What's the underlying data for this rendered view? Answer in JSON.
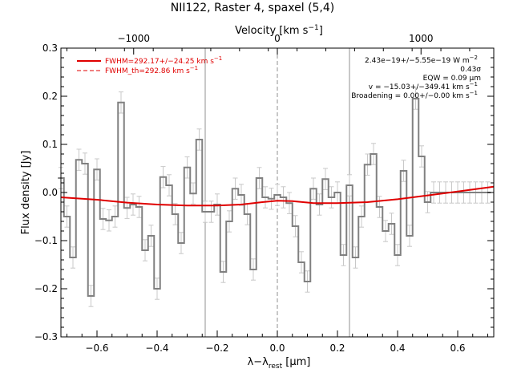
{
  "chart_data": {
    "type": "line",
    "title": "NII122, Raster 4, spaxel (5,4)",
    "xlabel": "λ−λ",
    "xlabel_sub": "rest",
    "xlabel_unit_open": " [",
    "xlabel_unit_mu": "μ",
    "xlabel_unit_close": "m]",
    "ylabel": "Flux density [Jy]",
    "top_axis_label": "Velocity [km s",
    "top_axis_label_sup": "−1",
    "top_axis_label_close": "]",
    "xlim": [
      -0.72,
      0.72
    ],
    "ylim": [
      -0.3,
      0.3
    ],
    "x_ticks": [
      -0.6,
      -0.4,
      -0.2,
      0.0,
      0.2,
      0.4,
      0.6
    ],
    "x_tick_labels": [
      "−0.6",
      "−0.4",
      "−0.2",
      "0.0",
      "0.2",
      "0.4",
      "0.6"
    ],
    "y_ticks": [
      -0.3,
      -0.2,
      -0.1,
      0.0,
      0.1,
      0.2,
      0.3
    ],
    "y_tick_labels": [
      "−0.3",
      "−0.2",
      "−0.1",
      "0.0",
      "0.1",
      "0.2",
      "0.3"
    ],
    "top_ticks_x": [
      -0.478,
      0.0,
      0.478
    ],
    "top_tick_labels": [
      "−1000",
      "0",
      "1000"
    ],
    "vertical_lines_x": [
      -0.24,
      0.0,
      0.24
    ],
    "legend": [
      {
        "label": "FWHM=292.17+/−24.25 km s",
        "sup": "−1",
        "style": "solid",
        "color": "#e00000"
      },
      {
        "label": "FWHM_th=292.86 km s",
        "sup": "−1",
        "style": "dashed",
        "color": "#e00000"
      }
    ],
    "annotations": [
      {
        "text": "2.43e−19+/−5.55e−19 W m",
        "sup": "−2"
      },
      {
        "text": "0.43σ",
        "sup": ""
      },
      {
        "text": "EQW = 0.09 μm",
        "sup": ""
      },
      {
        "text": "v = −15.03+/−349.41 km s",
        "sup": "−1"
      },
      {
        "text": "Broadening = 0.00+/−0.00 km s",
        "sup": "−1"
      }
    ],
    "series": [
      {
        "type": "step",
        "color": "#808080",
        "x": [
          -0.72,
          -0.7,
          -0.68,
          -0.66,
          -0.64,
          -0.62,
          -0.6,
          -0.58,
          -0.56,
          -0.54,
          -0.52,
          -0.5,
          -0.48,
          -0.46,
          -0.44,
          -0.42,
          -0.4,
          -0.38,
          -0.36,
          -0.34,
          -0.32,
          -0.3,
          -0.28,
          -0.26,
          -0.24,
          -0.22,
          -0.2,
          -0.18,
          -0.16,
          -0.14,
          -0.12,
          -0.1,
          -0.08,
          -0.06,
          -0.04,
          -0.02,
          0.0,
          0.02,
          0.04,
          0.06,
          0.08,
          0.1,
          0.12,
          0.14,
          0.16,
          0.18,
          0.2,
          0.22,
          0.24,
          0.26,
          0.28,
          0.3,
          0.32,
          0.34,
          0.36,
          0.38,
          0.4,
          0.42,
          0.44,
          0.46,
          0.48,
          0.5,
          0.52,
          0.54,
          0.56,
          0.58,
          0.6,
          0.62,
          0.64,
          0.66,
          0.68,
          0.7
        ],
        "y": [
          0.03,
          -0.05,
          -0.135,
          0.068,
          0.06,
          -0.215,
          0.048,
          -0.055,
          -0.058,
          -0.05,
          0.187,
          -0.032,
          -0.025,
          -0.03,
          -0.12,
          -0.09,
          -0.2,
          0.032,
          0.015,
          -0.045,
          -0.105,
          0.052,
          -0.002,
          0.11,
          -0.04,
          -0.04,
          -0.025,
          -0.165,
          -0.06,
          0.008,
          -0.005,
          -0.045,
          -0.16,
          0.03,
          -0.01,
          -0.013,
          -0.005,
          -0.01,
          -0.022,
          -0.07,
          -0.145,
          -0.185,
          0.008,
          -0.025,
          0.028,
          -0.01,
          0.0,
          -0.13,
          0.015,
          -0.135,
          -0.05,
          0.058,
          0.08,
          -0.03,
          -0.08,
          -0.065,
          -0.13,
          0.045,
          -0.09,
          0.195,
          0.075,
          -0.02,
          0.0,
          0.0,
          0.0,
          0.0,
          0.0,
          0.0,
          0.0,
          0.0,
          0.0,
          0.0
        ],
        "err": 0.022
      },
      {
        "type": "line",
        "color": "#e00000",
        "x": [
          -0.72,
          -0.6,
          -0.5,
          -0.4,
          -0.3,
          -0.2,
          -0.12,
          -0.05,
          0.0,
          0.05,
          0.12,
          0.2,
          0.3,
          0.4,
          0.5,
          0.6,
          0.72
        ],
        "y": [
          -0.01,
          -0.015,
          -0.021,
          -0.025,
          -0.027,
          -0.027,
          -0.025,
          -0.02,
          -0.017,
          -0.018,
          -0.022,
          -0.022,
          -0.02,
          -0.014,
          -0.006,
          0.002,
          0.012
        ]
      }
    ]
  }
}
